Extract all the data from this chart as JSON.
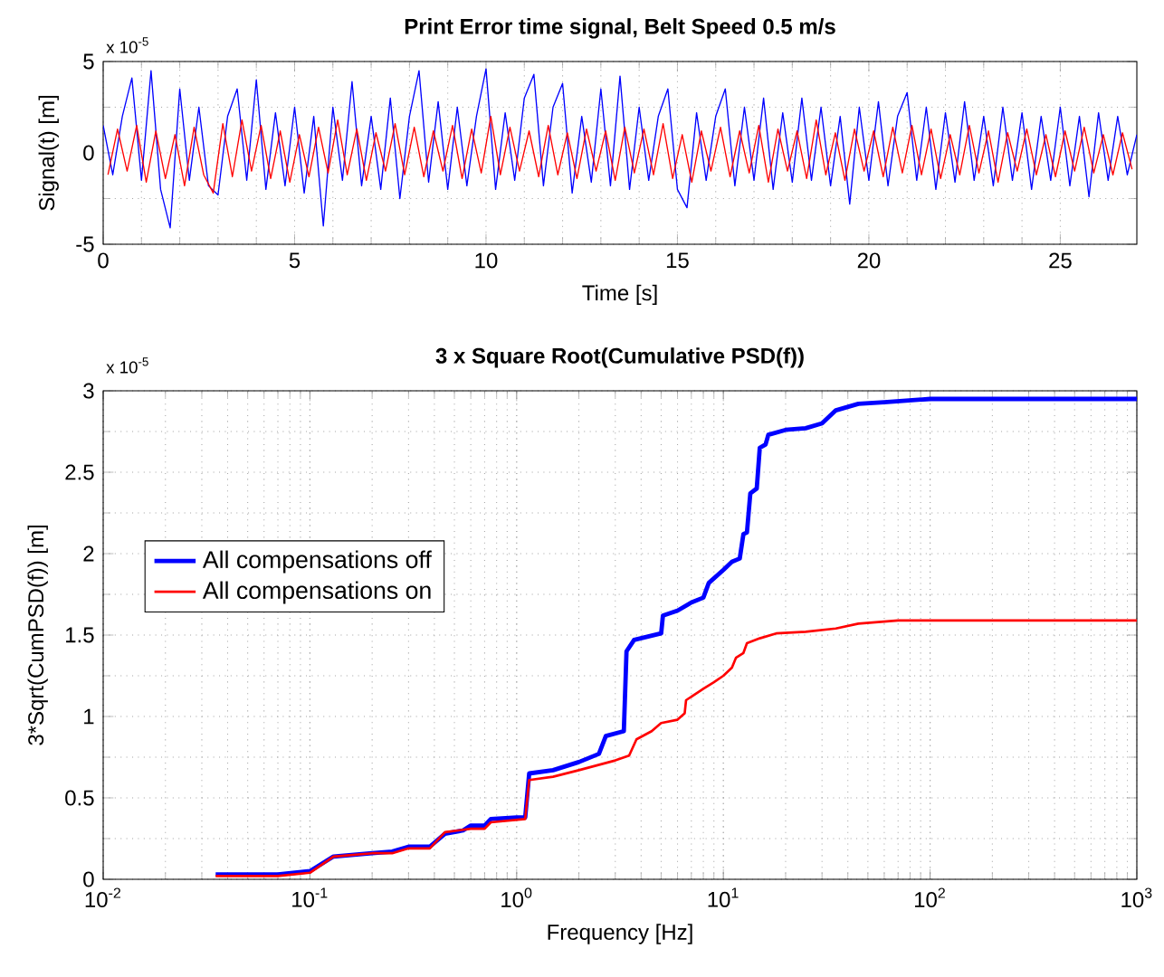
{
  "chart_data": [
    {
      "type": "line",
      "title": "Print Error time signal, Belt Speed 0.5 m/s",
      "xlabel": "Time [s]",
      "ylabel": "Signal(t)  [m]",
      "annotations": [
        "x 10$^{-5}$"
      ],
      "xlim": [
        0,
        27
      ],
      "ylim": [
        -5,
        5
      ],
      "xticks": [
        0,
        5,
        10,
        15,
        20,
        25
      ],
      "yticks": [
        -5,
        0,
        5
      ],
      "grid": true,
      "legend": false,
      "series": [
        {
          "color": "#0000ff",
          "x": [
            0,
            0.25,
            0.5,
            0.75,
            1,
            1.25,
            1.5,
            1.75,
            2,
            2.25,
            2.5,
            2.75,
            3,
            3.25,
            3.5,
            3.75,
            4,
            4.25,
            4.5,
            4.75,
            5,
            5.25,
            5.5,
            5.75,
            6,
            6.25,
            6.5,
            6.75,
            7,
            7.25,
            7.5,
            7.75,
            8,
            8.25,
            8.5,
            8.75,
            9,
            9.25,
            9.5,
            9.75,
            10,
            10.25,
            10.5,
            10.75,
            11,
            11.25,
            11.5,
            11.75,
            12,
            12.25,
            12.5,
            12.75,
            13,
            13.25,
            13.5,
            13.75,
            14,
            14.25,
            14.5,
            14.75,
            15,
            15.25,
            15.5,
            15.75,
            16,
            16.25,
            16.5,
            16.75,
            17,
            17.25,
            17.5,
            17.75,
            18,
            18.25,
            18.5,
            18.75,
            19,
            19.25,
            19.5,
            19.75,
            20,
            20.25,
            20.5,
            20.75,
            21,
            21.25,
            21.5,
            21.75,
            22,
            22.25,
            22.5,
            22.75,
            23,
            23.25,
            23.5,
            23.75,
            24,
            24.25,
            24.5,
            24.75,
            25,
            25.25,
            25.5,
            25.75,
            26,
            26.25,
            26.5,
            26.75,
            27
          ],
          "values": [
            1.5,
            -1.2,
            2.0,
            4.1,
            -1.5,
            4.5,
            -2.0,
            -4.1,
            3.5,
            -1.5,
            2.5,
            -1.8,
            -2.3,
            2.0,
            3.5,
            -1.5,
            4.0,
            -2.0,
            2.2,
            -1.8,
            2.5,
            -2.2,
            2.0,
            -4.0,
            2.5,
            -1.5,
            3.9,
            -1.8,
            2.0,
            -2.0,
            3.0,
            -2.5,
            2.0,
            4.5,
            -1.6,
            2.8,
            -2.0,
            2.5,
            -1.8,
            2.0,
            4.6,
            -2.0,
            2.2,
            -1.5,
            3.0,
            4.3,
            -1.8,
            2.5,
            3.8,
            -2.2,
            2.0,
            -1.6,
            3.5,
            -1.8,
            4.2,
            -2.0,
            2.5,
            -1.5,
            2.0,
            3.5,
            -2.0,
            -3.0,
            2.2,
            -1.5,
            2.0,
            3.5,
            -1.8,
            2.5,
            -1.5,
            3.0,
            -2.0,
            2.2,
            -1.6,
            3.0,
            -1.5,
            2.5,
            -1.8,
            2.0,
            -2.8,
            2.5,
            -1.5,
            2.8,
            -1.8,
            2.0,
            3.3,
            -1.5,
            2.5,
            -2.0,
            2.2,
            -1.6,
            2.8,
            -1.5,
            2.0,
            -1.8,
            2.5,
            -1.5,
            2.2,
            -2.0,
            2.0,
            -1.5,
            2.5,
            -1.8,
            2.0,
            -2.4,
            2.2,
            -1.5,
            2.0,
            -1.2,
            1.0
          ]
        },
        {
          "color": "#ff0000",
          "x": [
            0.125,
            0.375,
            0.625,
            0.875,
            1.125,
            1.375,
            1.625,
            1.875,
            2.125,
            2.375,
            2.625,
            2.875,
            3.125,
            3.375,
            3.625,
            3.875,
            4.125,
            4.375,
            4.625,
            4.875,
            5.125,
            5.375,
            5.625,
            5.875,
            6.125,
            6.375,
            6.625,
            6.875,
            7.125,
            7.375,
            7.625,
            7.875,
            8.125,
            8.375,
            8.625,
            8.875,
            9.125,
            9.375,
            9.625,
            9.875,
            10.125,
            10.375,
            10.625,
            10.875,
            11.125,
            11.375,
            11.625,
            11.875,
            12.125,
            12.375,
            12.625,
            12.875,
            13.125,
            13.375,
            13.625,
            13.875,
            14.125,
            14.375,
            14.625,
            14.875,
            15.125,
            15.375,
            15.625,
            15.875,
            16.125,
            16.375,
            16.625,
            16.875,
            17.125,
            17.375,
            17.625,
            17.875,
            18.125,
            18.375,
            18.625,
            18.875,
            19.125,
            19.375,
            19.625,
            19.875,
            20.125,
            20.375,
            20.625,
            20.875,
            21.125,
            21.375,
            21.625,
            21.875,
            22.125,
            22.375,
            22.625,
            22.875,
            23.125,
            23.375,
            23.625,
            23.875,
            24.125,
            24.375,
            24.625,
            24.875,
            25.125,
            25.375,
            25.625,
            25.875,
            26.125,
            26.375,
            26.625,
            26.875
          ],
          "values": [
            -1.2,
            1.3,
            -1.0,
            1.5,
            -1.6,
            1.2,
            -1.4,
            1.0,
            -1.8,
            1.4,
            -1.2,
            -2.2,
            1.6,
            -1.3,
            1.8,
            -1.0,
            1.5,
            -1.4,
            1.2,
            -1.6,
            1.0,
            -1.3,
            1.4,
            -1.1,
            1.8,
            -1.2,
            1.3,
            -1.5,
            1.1,
            -1.0,
            1.6,
            -1.2,
            1.4,
            -1.3,
            1.2,
            -1.0,
            1.5,
            -1.4,
            1.3,
            -1.1,
            2.0,
            -1.2,
            1.4,
            -1.0,
            1.2,
            -1.3,
            1.5,
            -1.2,
            1.1,
            -1.4,
            1.3,
            -1.0,
            1.2,
            -1.5,
            1.4,
            -1.1,
            1.3,
            -1.2,
            1.6,
            -1.4,
            1.0,
            -1.6,
            1.2,
            -1.0,
            1.4,
            -1.3,
            1.2,
            -1.1,
            1.5,
            -1.6,
            1.3,
            -1.0,
            1.2,
            -1.4,
            1.8,
            -1.2,
            1.1,
            -1.5,
            1.3,
            -1.0,
            1.2,
            -1.3,
            1.4,
            -1.1,
            1.5,
            -1.2,
            1.3,
            -1.4,
            1.0,
            -1.2,
            1.5,
            -1.1,
            1.2,
            -1.6,
            1.1,
            -1.0,
            1.3,
            -1.2,
            1.0,
            -1.3,
            1.2,
            -1.0,
            1.4,
            -1.1,
            1.0,
            -1.2,
            1.1,
            -0.9
          ]
        }
      ]
    },
    {
      "type": "line",
      "title": "3 x Square Root(Cumulative PSD(f))",
      "xlabel": "Frequency [Hz]",
      "ylabel": "3*Sqrt(CumPSD(f))  [m]",
      "annotations": [
        "x 10$^{-5}$"
      ],
      "log": "x",
      "xlim": [
        0.01,
        1000
      ],
      "ylim": [
        0,
        3
      ],
      "xticks": [
        {
          "value": 0.01,
          "label": "10$^{-2}$"
        },
        {
          "value": 0.1,
          "label": "10$^{-1}$"
        },
        {
          "value": 1,
          "label": "10$^{0}$"
        },
        {
          "value": 10,
          "label": "10$^{1}$"
        },
        {
          "value": 100,
          "label": "10$^{2}$"
        },
        {
          "value": 1000,
          "label": "10$^{3}$"
        }
      ],
      "yticks": [
        0,
        0.5,
        1,
        1.5,
        2,
        2.5,
        3
      ],
      "grid": true,
      "legend": "left",
      "series": [
        {
          "name": "All compensations off",
          "color": "#0000ff",
          "x": [
            0.035,
            0.07,
            0.1,
            0.13,
            0.2,
            0.25,
            0.3,
            0.38,
            0.45,
            0.55,
            0.6,
            0.7,
            0.75,
            1.0,
            1.1,
            1.15,
            1.5,
            2.0,
            2.5,
            2.7,
            3.3,
            3.4,
            3.7,
            5.0,
            5.1,
            6.0,
            7.0,
            8.0,
            8.5,
            10,
            11,
            12,
            12.5,
            13,
            13.5,
            14.5,
            15,
            16,
            16.5,
            20,
            25,
            30,
            35,
            45,
            60,
            100,
            1000
          ],
          "values": [
            0.03,
            0.03,
            0.05,
            0.14,
            0.16,
            0.17,
            0.2,
            0.2,
            0.28,
            0.3,
            0.33,
            0.33,
            0.37,
            0.38,
            0.38,
            0.65,
            0.67,
            0.72,
            0.77,
            0.88,
            0.91,
            1.4,
            1.47,
            1.51,
            1.62,
            1.65,
            1.7,
            1.73,
            1.82,
            1.9,
            1.95,
            1.97,
            2.12,
            2.13,
            2.37,
            2.4,
            2.65,
            2.67,
            2.73,
            2.76,
            2.77,
            2.8,
            2.88,
            2.92,
            2.93,
            2.95,
            2.95
          ]
        },
        {
          "name": "All compensations on",
          "color": "#ff0000",
          "x": [
            0.035,
            0.07,
            0.1,
            0.13,
            0.2,
            0.25,
            0.3,
            0.38,
            0.45,
            0.6,
            0.7,
            0.75,
            1.1,
            1.15,
            1.5,
            2.0,
            3.0,
            3.5,
            3.8,
            4.5,
            5.0,
            6.0,
            6.5,
            6.6,
            8.0,
            9,
            10,
            11,
            11.5,
            12.5,
            13,
            15,
            18,
            25,
            35,
            45,
            70,
            1000
          ],
          "values": [
            0.02,
            0.02,
            0.04,
            0.14,
            0.16,
            0.16,
            0.19,
            0.19,
            0.29,
            0.31,
            0.31,
            0.35,
            0.37,
            0.61,
            0.63,
            0.67,
            0.73,
            0.76,
            0.86,
            0.91,
            0.96,
            0.98,
            1.02,
            1.1,
            1.17,
            1.21,
            1.25,
            1.3,
            1.36,
            1.39,
            1.45,
            1.48,
            1.51,
            1.52,
            1.54,
            1.57,
            1.59,
            1.59
          ]
        }
      ]
    }
  ]
}
